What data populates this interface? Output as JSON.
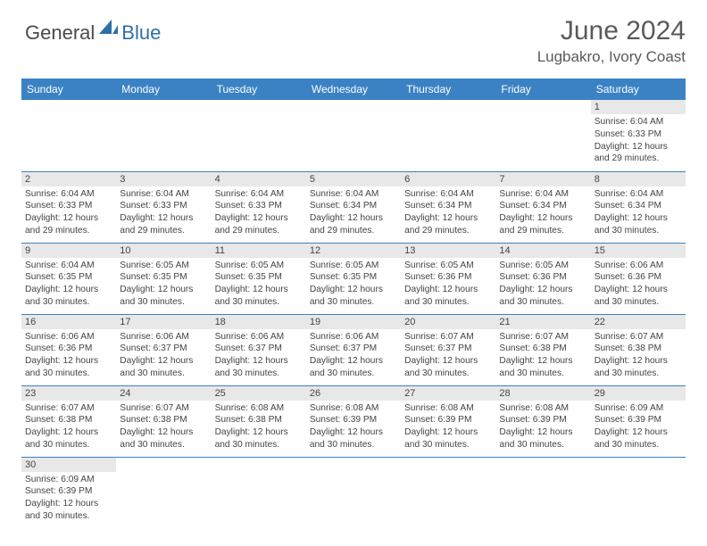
{
  "brand": {
    "part1": "General",
    "part2": "Blue"
  },
  "title": "June 2024",
  "location": "Lugbakro, Ivory Coast",
  "colors": {
    "header_bg": "#3b82c4",
    "header_text": "#ffffff",
    "daynum_bg": "#e8e8e8",
    "border": "#3b82c4",
    "brand_gray": "#4a4a4a",
    "brand_blue": "#2f6fa8"
  },
  "weekdays": [
    "Sunday",
    "Monday",
    "Tuesday",
    "Wednesday",
    "Thursday",
    "Friday",
    "Saturday"
  ],
  "weeks": [
    [
      null,
      null,
      null,
      null,
      null,
      null,
      {
        "n": "1",
        "sr": "6:04 AM",
        "ss": "6:33 PM",
        "dl": "12 hours and 29 minutes."
      }
    ],
    [
      {
        "n": "2",
        "sr": "6:04 AM",
        "ss": "6:33 PM",
        "dl": "12 hours and 29 minutes."
      },
      {
        "n": "3",
        "sr": "6:04 AM",
        "ss": "6:33 PM",
        "dl": "12 hours and 29 minutes."
      },
      {
        "n": "4",
        "sr": "6:04 AM",
        "ss": "6:33 PM",
        "dl": "12 hours and 29 minutes."
      },
      {
        "n": "5",
        "sr": "6:04 AM",
        "ss": "6:34 PM",
        "dl": "12 hours and 29 minutes."
      },
      {
        "n": "6",
        "sr": "6:04 AM",
        "ss": "6:34 PM",
        "dl": "12 hours and 29 minutes."
      },
      {
        "n": "7",
        "sr": "6:04 AM",
        "ss": "6:34 PM",
        "dl": "12 hours and 29 minutes."
      },
      {
        "n": "8",
        "sr": "6:04 AM",
        "ss": "6:34 PM",
        "dl": "12 hours and 30 minutes."
      }
    ],
    [
      {
        "n": "9",
        "sr": "6:04 AM",
        "ss": "6:35 PM",
        "dl": "12 hours and 30 minutes."
      },
      {
        "n": "10",
        "sr": "6:05 AM",
        "ss": "6:35 PM",
        "dl": "12 hours and 30 minutes."
      },
      {
        "n": "11",
        "sr": "6:05 AM",
        "ss": "6:35 PM",
        "dl": "12 hours and 30 minutes."
      },
      {
        "n": "12",
        "sr": "6:05 AM",
        "ss": "6:35 PM",
        "dl": "12 hours and 30 minutes."
      },
      {
        "n": "13",
        "sr": "6:05 AM",
        "ss": "6:36 PM",
        "dl": "12 hours and 30 minutes."
      },
      {
        "n": "14",
        "sr": "6:05 AM",
        "ss": "6:36 PM",
        "dl": "12 hours and 30 minutes."
      },
      {
        "n": "15",
        "sr": "6:06 AM",
        "ss": "6:36 PM",
        "dl": "12 hours and 30 minutes."
      }
    ],
    [
      {
        "n": "16",
        "sr": "6:06 AM",
        "ss": "6:36 PM",
        "dl": "12 hours and 30 minutes."
      },
      {
        "n": "17",
        "sr": "6:06 AM",
        "ss": "6:37 PM",
        "dl": "12 hours and 30 minutes."
      },
      {
        "n": "18",
        "sr": "6:06 AM",
        "ss": "6:37 PM",
        "dl": "12 hours and 30 minutes."
      },
      {
        "n": "19",
        "sr": "6:06 AM",
        "ss": "6:37 PM",
        "dl": "12 hours and 30 minutes."
      },
      {
        "n": "20",
        "sr": "6:07 AM",
        "ss": "6:37 PM",
        "dl": "12 hours and 30 minutes."
      },
      {
        "n": "21",
        "sr": "6:07 AM",
        "ss": "6:38 PM",
        "dl": "12 hours and 30 minutes."
      },
      {
        "n": "22",
        "sr": "6:07 AM",
        "ss": "6:38 PM",
        "dl": "12 hours and 30 minutes."
      }
    ],
    [
      {
        "n": "23",
        "sr": "6:07 AM",
        "ss": "6:38 PM",
        "dl": "12 hours and 30 minutes."
      },
      {
        "n": "24",
        "sr": "6:07 AM",
        "ss": "6:38 PM",
        "dl": "12 hours and 30 minutes."
      },
      {
        "n": "25",
        "sr": "6:08 AM",
        "ss": "6:38 PM",
        "dl": "12 hours and 30 minutes."
      },
      {
        "n": "26",
        "sr": "6:08 AM",
        "ss": "6:39 PM",
        "dl": "12 hours and 30 minutes."
      },
      {
        "n": "27",
        "sr": "6:08 AM",
        "ss": "6:39 PM",
        "dl": "12 hours and 30 minutes."
      },
      {
        "n": "28",
        "sr": "6:08 AM",
        "ss": "6:39 PM",
        "dl": "12 hours and 30 minutes."
      },
      {
        "n": "29",
        "sr": "6:09 AM",
        "ss": "6:39 PM",
        "dl": "12 hours and 30 minutes."
      }
    ],
    [
      {
        "n": "30",
        "sr": "6:09 AM",
        "ss": "6:39 PM",
        "dl": "12 hours and 30 minutes."
      },
      null,
      null,
      null,
      null,
      null,
      null
    ]
  ],
  "labels": {
    "sunrise": "Sunrise:",
    "sunset": "Sunset:",
    "daylight": "Daylight:"
  }
}
